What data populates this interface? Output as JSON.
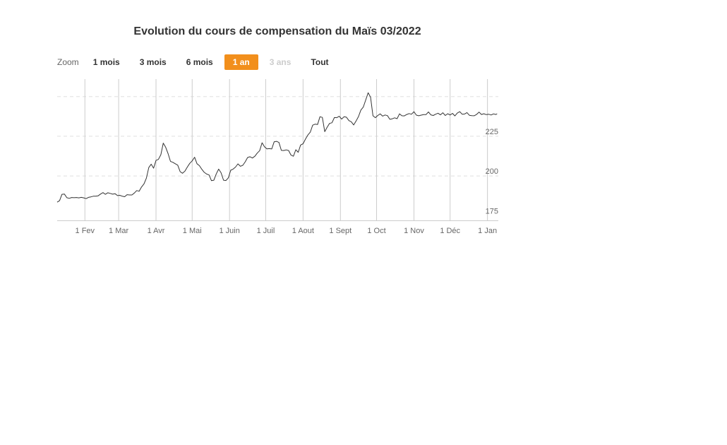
{
  "title": "Evolution du cours de compensation du Maïs 03/2022",
  "zoom": {
    "label": "Zoom",
    "buttons": [
      {
        "label": "1 mois",
        "state": "normal"
      },
      {
        "label": "3 mois",
        "state": "normal"
      },
      {
        "label": "6 mois",
        "state": "normal"
      },
      {
        "label": "1 an",
        "state": "active"
      },
      {
        "label": "3 ans",
        "state": "disabled"
      },
      {
        "label": "Tout",
        "state": "normal"
      }
    ]
  },
  "colors": {
    "line": "#333333",
    "grid_dashed": "#e0e0e0",
    "grid_vertical": "#cccccc",
    "axis": "#cccccc",
    "active_button": "#f28f1c"
  },
  "chart_data": {
    "type": "line",
    "title": "Evolution du cours de compensation du Maïs 03/2022",
    "x_tick_labels": [
      "1 Fev",
      "1 Mar",
      "1 Avr",
      "1 Mai",
      "1 Juin",
      "1 Juil",
      "1 Aout",
      "1 Sept",
      "1 Oct",
      "1 Nov",
      "1 Déc",
      "1 Jan"
    ],
    "x_tick_days": [
      31,
      59,
      90,
      120,
      151,
      181,
      212,
      243,
      273,
      304,
      334,
      365
    ],
    "y_ticks": [
      175,
      200,
      225
    ],
    "ylim": [
      172,
      261
    ],
    "xlim": [
      8,
      374
    ],
    "grid": true,
    "series": [
      {
        "x": [
          8,
          10,
          12,
          14,
          16,
          18,
          20,
          22,
          24,
          26,
          28,
          30,
          32,
          34,
          36,
          38,
          40,
          42,
          44,
          46,
          48,
          50,
          52,
          54,
          56,
          58,
          60,
          62,
          64,
          66,
          68,
          70,
          72,
          74,
          76,
          78,
          80,
          82,
          84,
          86,
          88,
          90,
          92,
          94,
          96,
          98,
          100,
          102,
          104,
          106,
          108,
          110,
          112,
          114,
          116,
          118,
          120,
          122,
          124,
          126,
          128,
          130,
          132,
          134,
          136,
          138,
          140,
          142,
          144,
          146,
          148,
          150,
          152,
          154,
          156,
          158,
          160,
          162,
          164,
          166,
          168,
          170,
          172,
          174,
          176,
          178,
          180,
          182,
          184,
          186,
          188,
          190,
          192,
          194,
          196,
          198,
          200,
          202,
          204,
          206,
          208,
          210,
          212,
          214,
          216,
          218,
          220,
          222,
          224,
          226,
          228,
          230,
          232,
          234,
          236,
          238,
          240,
          242,
          244,
          246,
          248,
          250,
          252,
          254,
          256,
          258,
          260,
          262,
          264,
          266,
          268,
          270,
          272,
          274,
          276,
          278,
          280,
          282,
          284,
          286,
          288,
          290,
          292,
          294,
          296,
          298,
          300,
          302,
          304,
          306,
          308,
          310,
          312,
          314,
          316,
          318,
          320,
          322,
          324,
          326,
          328,
          330,
          332,
          334,
          336,
          338,
          340,
          342,
          344,
          346,
          348,
          350,
          352,
          354,
          356,
          358,
          360,
          362,
          364,
          366,
          368,
          370,
          372,
          373
        ],
        "values": [
          183.5,
          184.4,
          188.4,
          188.6,
          186.3,
          185.9,
          186.4,
          186.3,
          186.4,
          186.2,
          186.5,
          186.2,
          185.7,
          186.5,
          186.8,
          187.2,
          187.2,
          187.5,
          188.6,
          189.5,
          188.4,
          189.4,
          189.0,
          188.5,
          188.8,
          187.6,
          187.8,
          187.2,
          186.9,
          188.2,
          188.0,
          188.0,
          189.2,
          190.8,
          190.4,
          193.0,
          195.0,
          198.6,
          205.3,
          207.4,
          204.9,
          209.8,
          210.4,
          213.4,
          220.7,
          218.1,
          214.1,
          209.2,
          208.6,
          207.7,
          206.8,
          202.7,
          201.7,
          203.0,
          205.6,
          207.9,
          209.5,
          211.8,
          207.7,
          206.5,
          204.2,
          202.3,
          201.2,
          200.6,
          197.0,
          197.3,
          201.3,
          204.3,
          202.0,
          197.3,
          197.1,
          198.8,
          203.6,
          204.3,
          205.6,
          207.6,
          206.1,
          206.7,
          208.9,
          211.6,
          212.1,
          211.3,
          212.4,
          214.4,
          215.9,
          220.9,
          218.4,
          217.1,
          217.2,
          217.0,
          221.5,
          221.8,
          221.1,
          216.1,
          216.0,
          216.4,
          216.0,
          213.1,
          212.4,
          216.5,
          214.9,
          219.5,
          220.3,
          223.2,
          225.8,
          227.6,
          232.0,
          232.6,
          232.4,
          237.3,
          236.9,
          227.9,
          230.7,
          233.1,
          233.5,
          236.8,
          236.7,
          237.6,
          235.8,
          237.3,
          237.0,
          234.9,
          234.1,
          232.1,
          234.6,
          237.4,
          241.5,
          243.4,
          247.9,
          252.4,
          249.6,
          237.9,
          236.7,
          238.1,
          239.1,
          237.7,
          238.4,
          238.0,
          235.7,
          236.0,
          236.6,
          236.1,
          239.1,
          237.9,
          237.8,
          238.7,
          239.3,
          238.9,
          240.5,
          238.3,
          237.9,
          238.3,
          238.6,
          238.6,
          240.3,
          238.5,
          238.1,
          238.9,
          239.5,
          238.5,
          239.8,
          238.1,
          239.2,
          238.4,
          239.4,
          237.8,
          239.6,
          240.5,
          238.9,
          239.0,
          239.9,
          238.2,
          238.0,
          237.9,
          238.8,
          240.2,
          238.7,
          239.2,
          238.6,
          238.9,
          238.4,
          239.1,
          238.7,
          239.2
        ]
      }
    ]
  }
}
